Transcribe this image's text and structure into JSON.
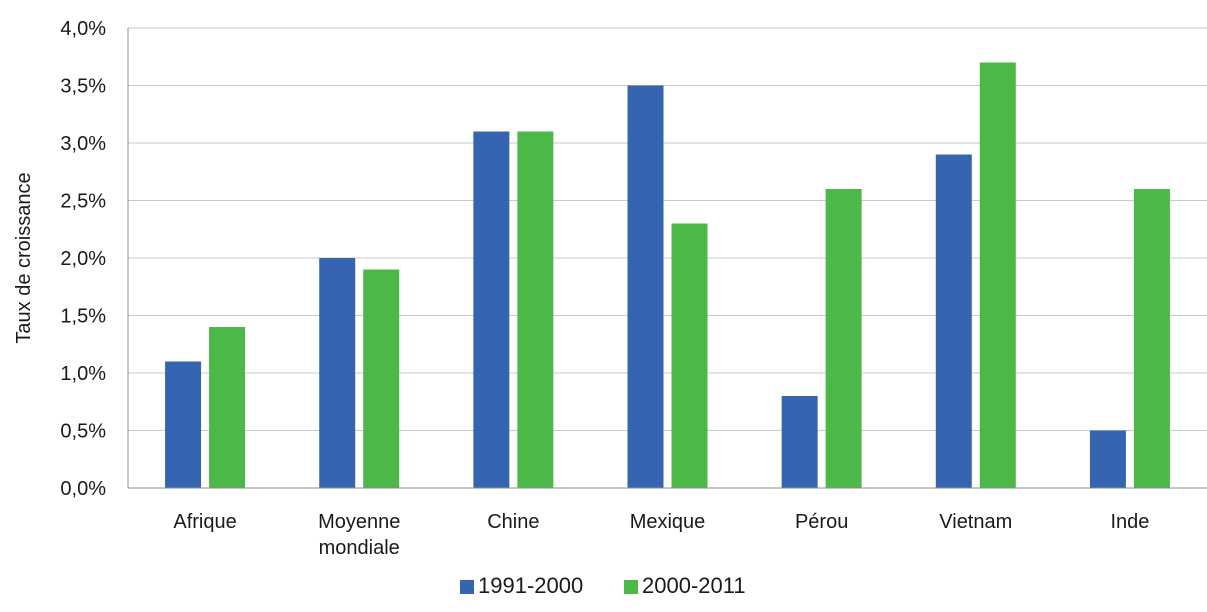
{
  "chart_data": {
    "type": "bar",
    "ylabel": "Taux de croissance",
    "ylim": [
      0,
      4.0
    ],
    "y_tick_step": 0.5,
    "y_tick_labels": [
      "0,0%",
      "0,5%",
      "1,0%",
      "1,5%",
      "2,0%",
      "2,5%",
      "3,0%",
      "3,5%",
      "4,0%"
    ],
    "grid": true,
    "legend_position": "bottom",
    "categories": [
      [
        "Afrique"
      ],
      [
        "Moyenne",
        "mondiale"
      ],
      [
        "Chine"
      ],
      [
        "Mexique"
      ],
      [
        "Pérou"
      ],
      [
        "Vietnam"
      ],
      [
        "Inde"
      ]
    ],
    "series": [
      {
        "name": "1991-2000",
        "color": "#3565b0",
        "values": [
          1.1,
          2.0,
          3.1,
          3.5,
          0.8,
          2.9,
          0.5
        ]
      },
      {
        "name": "2000-2011",
        "color": "#4cb848",
        "values": [
          1.4,
          1.9,
          3.1,
          2.3,
          2.6,
          3.7,
          2.6
        ]
      }
    ]
  }
}
